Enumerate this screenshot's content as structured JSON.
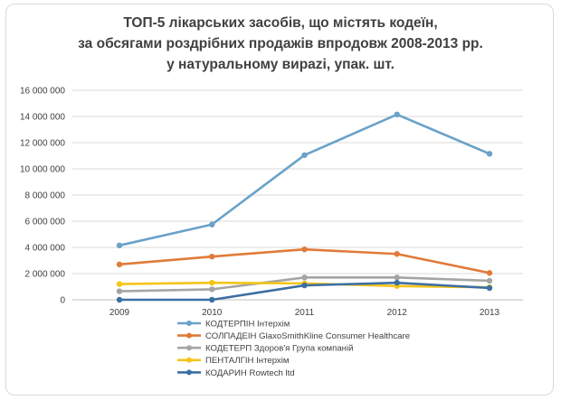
{
  "chart_data": {
    "type": "line",
    "title": [
      "ТОП-5 лікарських засобів, що містять кодеїн,",
      "за обсягами роздрібних продажів впродовж 2008-2013 рр.",
      "у натуральному вирazі, упак. шт."
    ],
    "x": [
      "2009",
      "2010",
      "2011",
      "2012",
      "2013"
    ],
    "ylim": [
      0,
      16000000
    ],
    "yticks": [
      0,
      2000000,
      4000000,
      6000000,
      8000000,
      10000000,
      12000000,
      14000000,
      16000000
    ],
    "ytick_labels": [
      "0",
      "2 000 000",
      "4 000 000",
      "6 000 000",
      "8 000 000",
      "10 000 000",
      "12 000 000",
      "14 000 000",
      "16 000 000"
    ],
    "grid": "horizontal",
    "legend_position": "bottom",
    "series": [
      {
        "name": "КОДТЕРПІН Інтерхім",
        "color": "#6aa2c8",
        "values": [
          4150000,
          5750000,
          11050000,
          14150000,
          11150000
        ]
      },
      {
        "name": "СОЛПАДЕІН GlaxoSmithKline Consumer Healthcare",
        "color": "#e07b39",
        "values": [
          2700000,
          3300000,
          3850000,
          3500000,
          2050000
        ]
      },
      {
        "name": "КОДЕТЕРП Здоров'я Група компаній",
        "color": "#a5a5a5",
        "values": [
          650000,
          800000,
          1700000,
          1700000,
          1450000
        ]
      },
      {
        "name": "ПЕНТАЛГІН Інтерхім",
        "color": "#f5c518",
        "values": [
          1200000,
          1300000,
          1250000,
          1050000,
          950000
        ]
      },
      {
        "name": "КОДАРИН Rowtech ltd",
        "color": "#3d6fa3",
        "values": [
          0,
          0,
          1100000,
          1300000,
          900000
        ]
      }
    ]
  }
}
